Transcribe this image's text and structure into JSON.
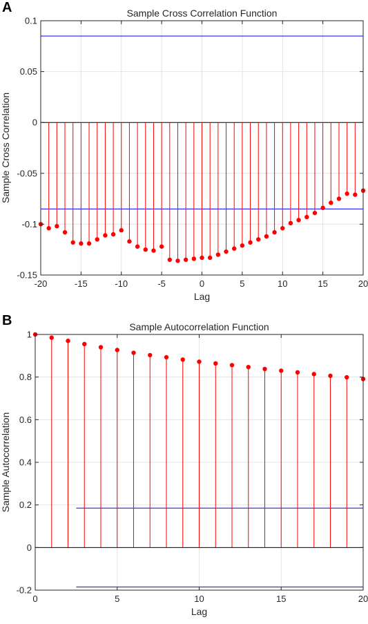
{
  "panels": {
    "a_letter": "A",
    "b_letter": "B"
  },
  "chart_data": [
    {
      "type": "scatter",
      "style": "stem",
      "title": "Sample Cross Correlation Function",
      "xlabel": "Lag",
      "ylabel": "Sample Cross Correlation",
      "xlim": [
        -20,
        20
      ],
      "ylim": [
        -0.15,
        0.1
      ],
      "xticks": [
        -20,
        -15,
        -10,
        -5,
        0,
        5,
        10,
        15,
        20
      ],
      "yticks": [
        -0.15,
        -0.1,
        -0.05,
        0,
        0.05,
        0.1
      ],
      "ytick_labels": [
        "-0.15",
        "-0.1",
        "-0.05",
        "0",
        "0.05",
        "0.1"
      ],
      "grid": true,
      "stem_color": "#ff0000",
      "bound_color": "#0000ff",
      "bounds": [
        0.085,
        -0.085
      ],
      "x": [
        -20,
        -19,
        -18,
        -17,
        -16,
        -15,
        -14,
        -13,
        -12,
        -11,
        -10,
        -9,
        -8,
        -7,
        -6,
        -5,
        -4,
        -3,
        -2,
        -1,
        0,
        1,
        2,
        3,
        4,
        5,
        6,
        7,
        8,
        9,
        10,
        11,
        12,
        13,
        14,
        15,
        16,
        17,
        18,
        19,
        20
      ],
      "y": [
        -0.1,
        -0.104,
        -0.102,
        -0.108,
        -0.118,
        -0.119,
        -0.119,
        -0.115,
        -0.111,
        -0.11,
        -0.106,
        -0.117,
        -0.122,
        -0.125,
        -0.126,
        -0.122,
        -0.135,
        -0.136,
        -0.135,
        -0.134,
        -0.133,
        -0.133,
        -0.13,
        -0.127,
        -0.124,
        -0.121,
        -0.118,
        -0.115,
        -0.112,
        -0.108,
        -0.104,
        -0.099,
        -0.096,
        -0.093,
        -0.089,
        -0.084,
        -0.079,
        -0.075,
        -0.07,
        -0.071,
        -0.067
      ]
    },
    {
      "type": "scatter",
      "style": "stem",
      "title": "Sample Autocorrelation Function",
      "xlabel": "Lag",
      "ylabel": "Sample Autocorrelation",
      "xlim": [
        0,
        20
      ],
      "ylim": [
        -0.2,
        1
      ],
      "xticks": [
        0,
        5,
        10,
        15,
        20
      ],
      "yticks": [
        -0.2,
        0,
        0.2,
        0.4,
        0.6,
        0.8,
        1
      ],
      "ytick_labels": [
        "-0.2",
        "0",
        "0.2",
        "0.4",
        "0.6",
        "0.8",
        "1"
      ],
      "grid": true,
      "stem_color": "#ff0000",
      "bound_color": "#0000ff",
      "bounds": [
        0.185,
        -0.185
      ],
      "bounds_x_start": 2.5,
      "x": [
        0,
        1,
        2,
        3,
        4,
        5,
        6,
        7,
        8,
        9,
        10,
        11,
        12,
        13,
        14,
        15,
        16,
        17,
        18,
        19,
        20
      ],
      "y": [
        1.0,
        0.985,
        0.97,
        0.955,
        0.94,
        0.927,
        0.914,
        0.903,
        0.893,
        0.882,
        0.872,
        0.864,
        0.856,
        0.847,
        0.838,
        0.83,
        0.822,
        0.814,
        0.806,
        0.799,
        0.791
      ]
    }
  ]
}
